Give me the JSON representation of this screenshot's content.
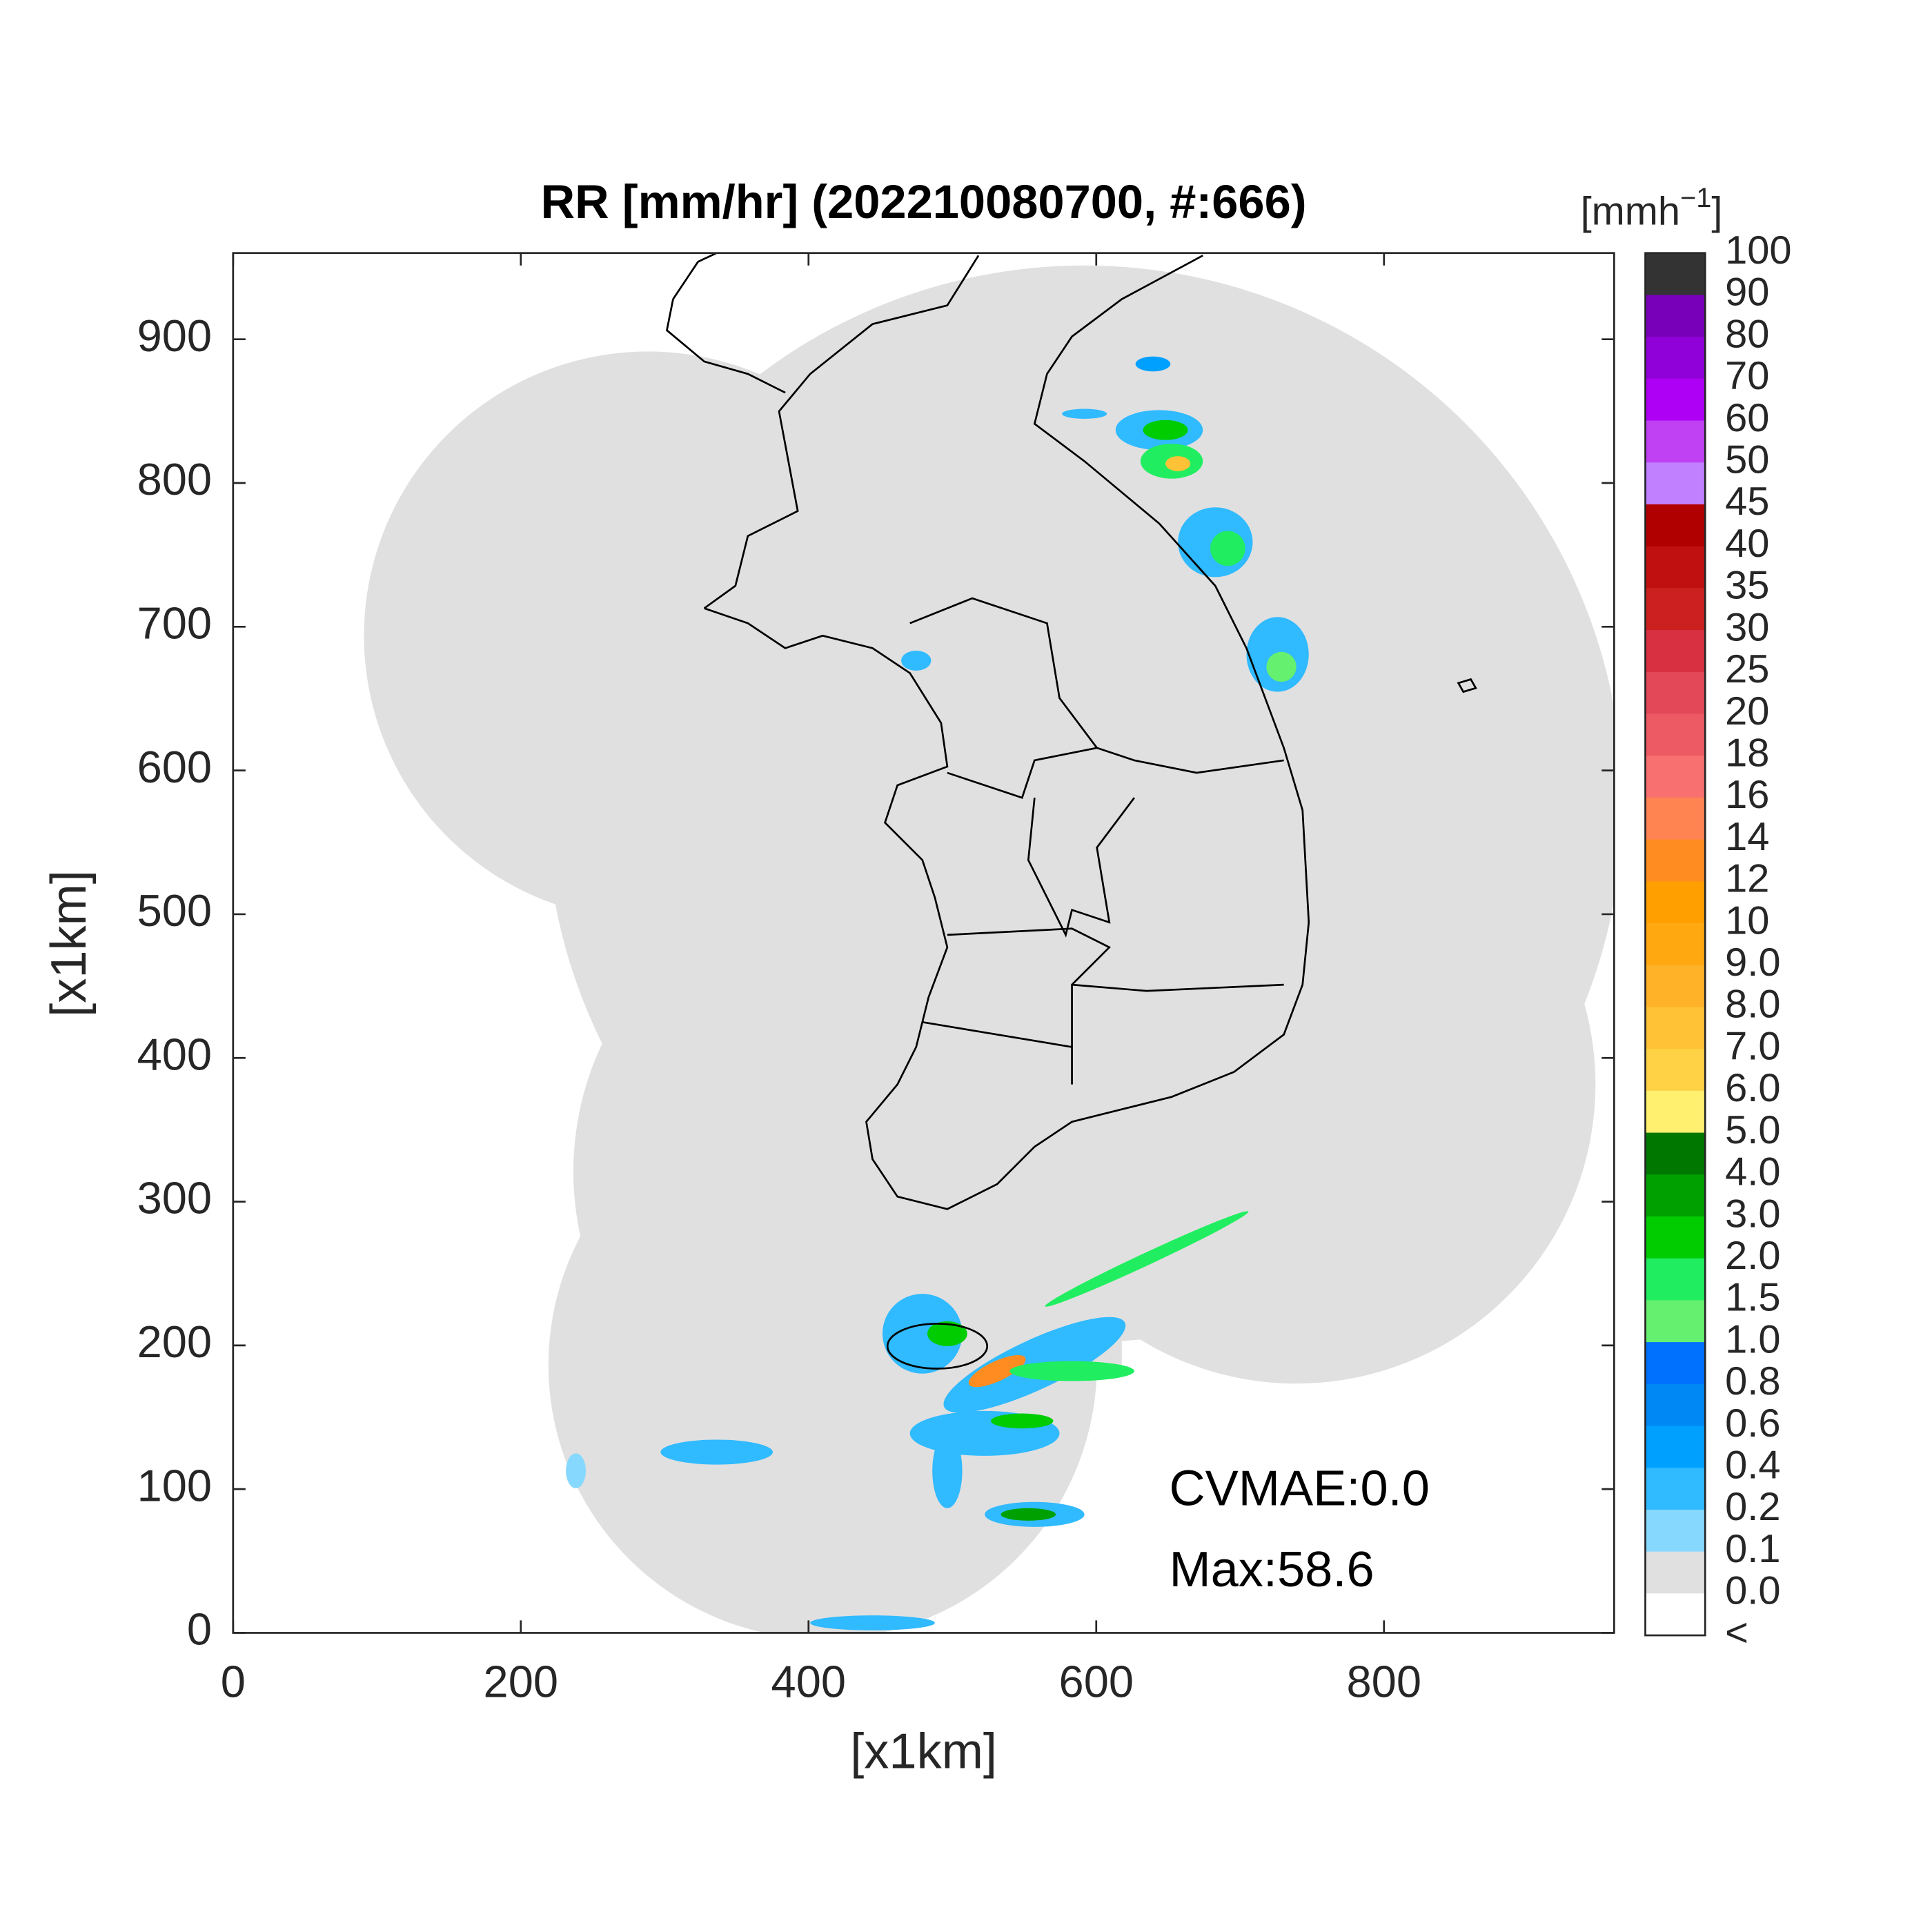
{
  "chart_data": {
    "type": "map",
    "title": "RR [mm/hr] (202210080700, #:666)",
    "xlabel": "[x1km]",
    "ylabel": "[x1km]",
    "xlim": [
      0,
      960
    ],
    "ylim": [
      0,
      960
    ],
    "xticks": [
      0,
      200,
      400,
      600,
      800
    ],
    "yticks": [
      0,
      100,
      200,
      300,
      400,
      500,
      600,
      700,
      800,
      900
    ],
    "colorbar": {
      "unit": [
        "[mmh",
        "−1",
        "]"
      ],
      "labels": [
        "100",
        "90",
        "80",
        "70",
        "60",
        "50",
        "45",
        "40",
        "35",
        "30",
        "25",
        "20",
        "18",
        "16",
        "14",
        "12",
        "10",
        "9.0",
        "8.0",
        "7.0",
        "6.0",
        "5.0",
        "4.0",
        "3.0",
        "2.0",
        "1.5",
        "1.0",
        "0.8",
        "0.6",
        "0.4",
        "0.2",
        "0.1",
        "0.0",
        "<"
      ],
      "colors": [
        "#333333",
        "#7800b8",
        "#9000d8",
        "#ae00f4",
        "#c040f4",
        "#c080ff",
        "#b00000",
        "#c01010",
        "#cc2020",
        "#d83040",
        "#e24858",
        "#ee5a64",
        "#f87070",
        "#ff8452",
        "#ff8c20",
        "#ffa000",
        "#ffa810",
        "#ffb228",
        "#ffc236",
        "#ffd246",
        "#fff070",
        "#007800",
        "#00a000",
        "#00cc00",
        "#20ee60",
        "#66f070",
        "#0070ff",
        "#0088f4",
        "#00a0ff",
        "#30baff",
        "#86d8ff",
        "#e0e0e0",
        "#ffffff"
      ]
    },
    "annotations": [
      "CVMAE:0.0",
      "Max:58.6"
    ]
  }
}
